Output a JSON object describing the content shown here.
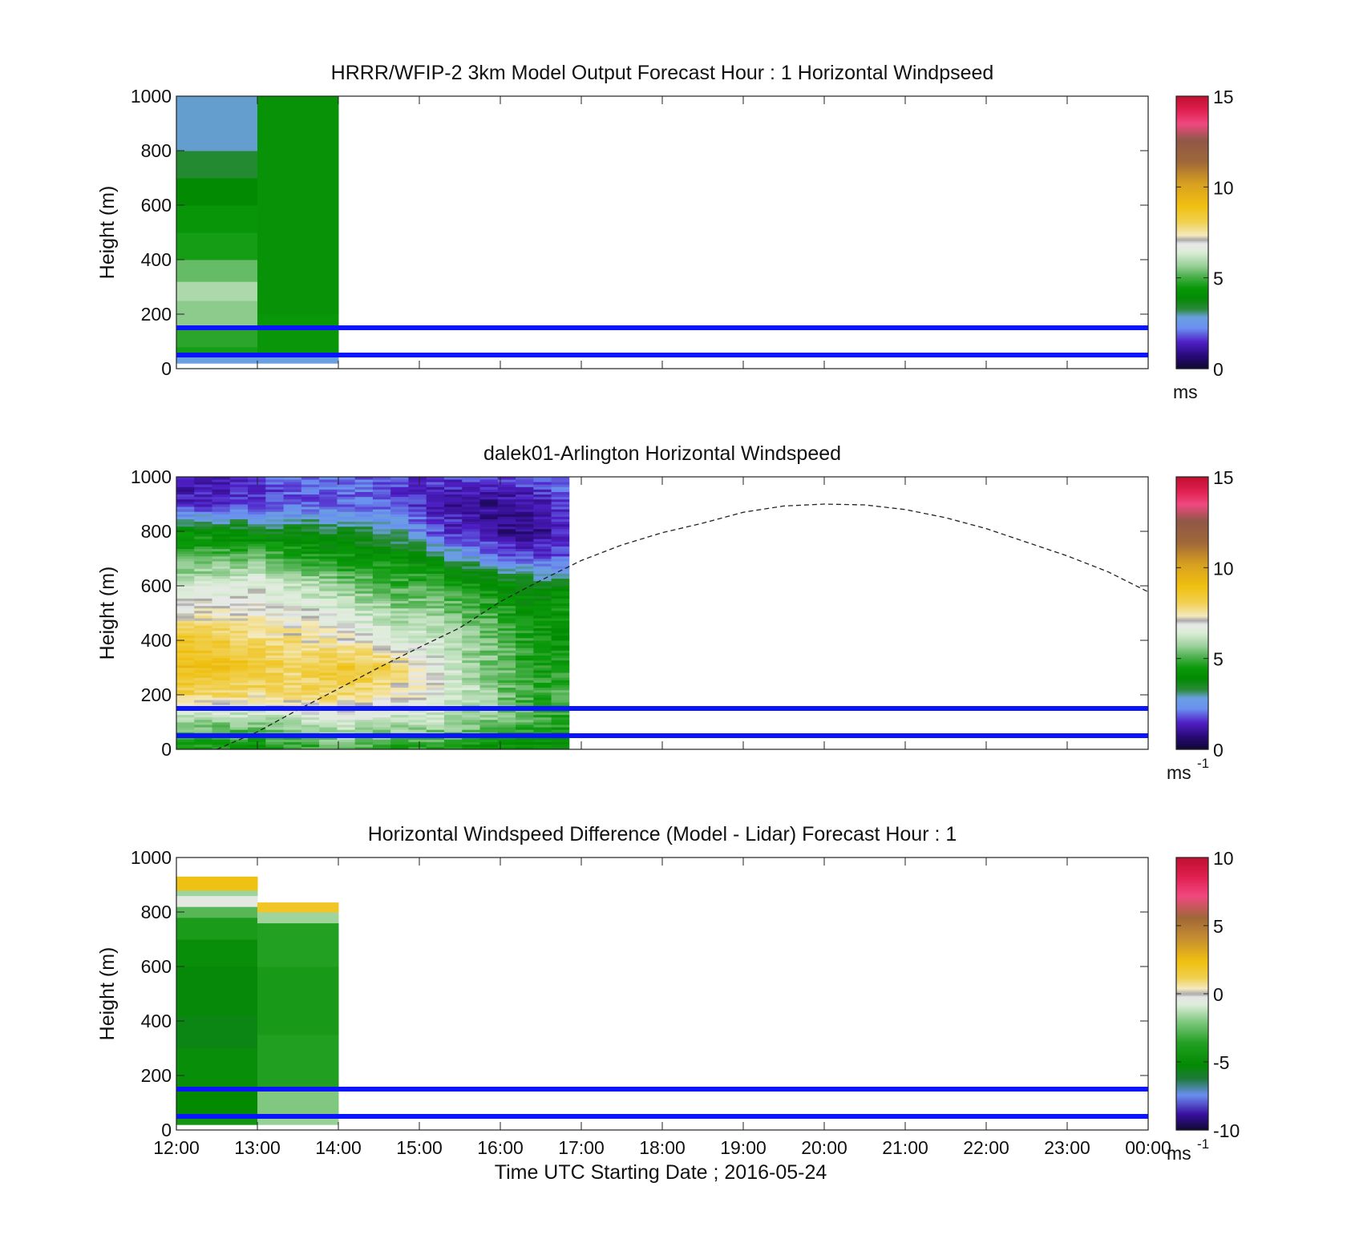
{
  "figure": {
    "xlabel": "Time UTC  Starting Date ; 2016-05-24",
    "x_ticks": [
      "12:00",
      "13:00",
      "14:00",
      "15:00",
      "16:00",
      "17:00",
      "18:00",
      "19:00",
      "20:00",
      "21:00",
      "22:00",
      "23:00",
      "00:00"
    ]
  },
  "chart_data": [
    {
      "type": "heatmap",
      "title": "HRRR/WFIP-2 3km Model Output   Forecast Hour : 1 Horizontal Windpseed",
      "ylabel": "Height (m)",
      "xlim_hours": [
        12,
        24
      ],
      "ylim": [
        0,
        1000
      ],
      "y_ticks": [
        "0",
        "200",
        "400",
        "600",
        "800",
        "1000"
      ],
      "colorbar": {
        "range": [
          0,
          15
        ],
        "ticks": [
          "0",
          "5",
          "10",
          "15"
        ],
        "unit": "ms",
        "unit_sup": ""
      },
      "reference_lines_m": [
        50,
        150
      ],
      "columns": [
        {
          "start": 12,
          "end": 13,
          "bins": [
            {
              "y0": 20,
              "y1": 50,
              "v": 2.8
            },
            {
              "y0": 50,
              "y1": 80,
              "v": 4.6
            },
            {
              "y0": 80,
              "y1": 150,
              "v": 4.8
            },
            {
              "y0": 150,
              "y1": 250,
              "v": 5.6
            },
            {
              "y0": 250,
              "y1": 320,
              "v": 5.9
            },
            {
              "y0": 320,
              "y1": 400,
              "v": 5.3
            },
            {
              "y0": 400,
              "y1": 500,
              "v": 4.6
            },
            {
              "y0": 500,
              "y1": 600,
              "v": 4.3
            },
            {
              "y0": 600,
              "y1": 700,
              "v": 3.9
            },
            {
              "y0": 700,
              "y1": 800,
              "v": 3.4
            },
            {
              "y0": 800,
              "y1": 1000,
              "v": 2.9
            }
          ]
        },
        {
          "start": 13,
          "end": 14,
          "bins": [
            {
              "y0": 20,
              "y1": 50,
              "v": 2.8
            },
            {
              "y0": 50,
              "y1": 200,
              "v": 4.4
            },
            {
              "y0": 200,
              "y1": 1000,
              "v": 4.2
            }
          ]
        }
      ]
    },
    {
      "type": "heatmap",
      "title": "dalek01-Arlington  Horizontal Windspeed",
      "ylabel": "Height (m)",
      "xlim_hours": [
        12,
        24
      ],
      "ylim": [
        0,
        1000
      ],
      "y_ticks": [
        "0",
        "200",
        "400",
        "600",
        "800",
        "1000"
      ],
      "colorbar": {
        "range": [
          0,
          15
        ],
        "ticks": [
          "0",
          "5",
          "10",
          "15"
        ],
        "unit": "ms",
        "unit_sup": "-1"
      },
      "reference_lines_m": [
        50,
        150
      ],
      "data_extent_hours": [
        12,
        16.85
      ],
      "profile_x_hours": [
        12.25,
        12.5,
        12.75,
        13,
        13.25,
        13.5,
        13.75,
        14,
        14.25,
        14.5,
        14.75,
        15,
        15.25,
        15.5,
        15.75,
        16,
        16.25,
        16.5,
        16.75
      ],
      "profile_y_m": [
        0,
        100,
        200,
        300,
        400,
        500,
        600,
        700,
        800,
        900,
        1000
      ],
      "profile_values": [
        [
          4.5,
          5.7,
          8.1,
          8.9,
          8.7,
          7.2,
          6.3,
          5.1,
          4.2,
          1.4,
          1.2
        ],
        [
          4.4,
          5.7,
          8.0,
          8.8,
          8.4,
          7.2,
          6.4,
          5.3,
          4.0,
          1.5,
          1.4
        ],
        [
          4.4,
          5.6,
          7.9,
          8.8,
          8.1,
          7.1,
          6.6,
          5.4,
          3.9,
          1.6,
          1.6
        ],
        [
          4.3,
          5.6,
          7.8,
          8.7,
          7.9,
          7.1,
          6.7,
          5.5,
          3.7,
          1.7,
          1.7
        ],
        [
          4.5,
          5.8,
          7.8,
          8.2,
          7.8,
          7.0,
          6.4,
          5.2,
          3.6,
          1.8,
          1.8
        ],
        [
          4.7,
          6.0,
          7.9,
          7.8,
          7.7,
          6.9,
          6.2,
          4.9,
          3.6,
          1.9,
          2.0
        ],
        [
          4.9,
          6.2,
          8.0,
          8.4,
          7.5,
          6.7,
          6.0,
          4.7,
          3.5,
          2.0,
          2.0
        ],
        [
          5.1,
          6.2,
          8.0,
          8.6,
          7.3,
          6.5,
          5.7,
          4.5,
          3.5,
          2.0,
          2.1
        ],
        [
          5.0,
          6.3,
          7.9,
          8.6,
          7.0,
          6.3,
          5.5,
          4.4,
          3.4,
          2.1,
          2.1
        ],
        [
          4.7,
          6.2,
          7.5,
          8.3,
          6.8,
          6.0,
          5.2,
          4.3,
          3.1,
          1.9,
          2.0
        ],
        [
          4.6,
          6.1,
          7.2,
          7.9,
          6.5,
          5.8,
          5.0,
          4.2,
          2.9,
          1.7,
          1.8
        ],
        [
          4.7,
          6.1,
          7.0,
          7.3,
          6.4,
          5.8,
          5.1,
          4.0,
          2.3,
          1.5,
          1.6
        ],
        [
          4.6,
          6.0,
          6.8,
          6.8,
          6.3,
          5.7,
          5.1,
          3.5,
          1.8,
          1.3,
          1.6
        ],
        [
          4.4,
          5.8,
          6.4,
          6.0,
          5.8,
          5.3,
          4.7,
          3.0,
          1.4,
          1.1,
          1.7
        ],
        [
          4.2,
          5.6,
          6.0,
          5.7,
          5.6,
          5.2,
          4.5,
          2.6,
          1.2,
          0.9,
          1.7
        ],
        [
          4.1,
          5.4,
          5.5,
          5.3,
          5.2,
          4.7,
          4.2,
          2.1,
          0.9,
          0.9,
          1.8
        ],
        [
          4.0,
          5.2,
          5.0,
          4.9,
          4.8,
          4.4,
          3.9,
          2.0,
          0.8,
          1.0,
          1.9
        ],
        [
          4.0,
          4.9,
          4.9,
          4.6,
          4.4,
          4.3,
          3.7,
          1.9,
          0.9,
          1.2,
          2.1
        ],
        [
          3.9,
          4.7,
          5.0,
          4.8,
          4.3,
          4.4,
          3.9,
          2.0,
          1.3,
          1.8,
          2.3
        ]
      ],
      "boundary_layer_curve": {
        "style": "dashed",
        "x_hours": [
          12.5,
          13,
          13.5,
          14,
          14.5,
          15,
          15.5,
          16,
          16.5,
          17,
          17.5,
          18,
          18.5,
          19,
          19.5,
          20,
          20.5,
          21,
          21.5,
          22,
          22.5,
          23,
          23.5,
          24
        ],
        "y_m": [
          0,
          64,
          145,
          222,
          300,
          374,
          446,
          542,
          620,
          693,
          750,
          795,
          830,
          870,
          893,
          900,
          897,
          880,
          850,
          810,
          760,
          710,
          652,
          578
        ]
      }
    },
    {
      "type": "heatmap",
      "title": "Horizontal Windspeed Difference (Model - Lidar) Forecast Hour : 1",
      "ylabel": "Height (m)",
      "xlim_hours": [
        12,
        24
      ],
      "ylim": [
        0,
        1000
      ],
      "y_ticks": [
        "0",
        "200",
        "400",
        "600",
        "800",
        "1000"
      ],
      "colorbar": {
        "range": [
          -10,
          10
        ],
        "ticks": [
          "-10",
          "-5",
          "0",
          "5",
          "10"
        ],
        "unit": "ms",
        "unit_sup": "-1"
      },
      "reference_lines_m": [
        50,
        150
      ],
      "columns": [
        {
          "start": 12,
          "end": 13,
          "bins": [
            {
              "y0": 20,
              "y1": 50,
              "v": -4.4
            },
            {
              "y0": 50,
              "y1": 150,
              "v": -5.2
            },
            {
              "y0": 150,
              "y1": 300,
              "v": -4.9
            },
            {
              "y0": 300,
              "y1": 420,
              "v": -5.5
            },
            {
              "y0": 420,
              "y1": 600,
              "v": -5.3
            },
            {
              "y0": 600,
              "y1": 700,
              "v": -4.9
            },
            {
              "y0": 700,
              "y1": 780,
              "v": -4.0
            },
            {
              "y0": 780,
              "y1": 820,
              "v": -2.7
            },
            {
              "y0": 820,
              "y1": 860,
              "v": -0.4
            },
            {
              "y0": 860,
              "y1": 880,
              "v": -1.6
            },
            {
              "y0": 880,
              "y1": 930,
              "v": 2.3
            }
          ]
        },
        {
          "start": 13,
          "end": 14,
          "bins": [
            {
              "y0": 20,
              "y1": 50,
              "v": -1.7
            },
            {
              "y0": 50,
              "y1": 150,
              "v": -2.0
            },
            {
              "y0": 150,
              "y1": 350,
              "v": -3.7
            },
            {
              "y0": 350,
              "y1": 600,
              "v": -4.1
            },
            {
              "y0": 600,
              "y1": 760,
              "v": -3.6
            },
            {
              "y0": 760,
              "y1": 800,
              "v": -1.6
            },
            {
              "y0": 800,
              "y1": 835,
              "v": 2.0
            }
          ]
        }
      ]
    }
  ]
}
